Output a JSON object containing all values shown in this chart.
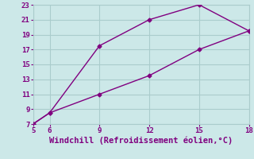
{
  "line1_x": [
    5,
    6,
    9,
    12,
    15,
    18
  ],
  "line1_y": [
    7,
    8.5,
    17.5,
    21,
    23,
    19.5
  ],
  "line2_x": [
    5,
    6,
    9,
    12,
    15,
    18
  ],
  "line2_y": [
    7,
    8.5,
    11,
    13.5,
    17,
    19.5
  ],
  "line_color": "#800080",
  "bg_color": "#cce8e8",
  "grid_color": "#aacccc",
  "xlabel": "Windchill (Refroidissement éolien,°C)",
  "xlabel_color": "#800080",
  "tick_color": "#800080",
  "xlim": [
    5,
    18
  ],
  "ylim": [
    7,
    23
  ],
  "xticks": [
    5,
    6,
    9,
    12,
    15,
    18
  ],
  "yticks": [
    7,
    9,
    11,
    13,
    15,
    17,
    19,
    21,
    23
  ],
  "marker": "D",
  "marker_size": 2.5,
  "line_width": 1.0,
  "xlabel_fontsize": 7.5,
  "tick_fontsize": 6.5
}
